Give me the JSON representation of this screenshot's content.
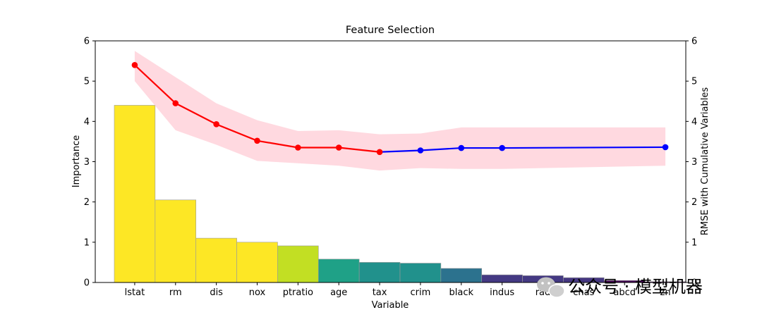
{
  "chart_data": {
    "type": "bar",
    "title": "Feature Selection",
    "xlabel": "Variable",
    "ylabel": "Importance",
    "y2label": "RMSE with Cumulative Variables",
    "ylim": [
      0,
      6
    ],
    "y2lim": [
      0,
      6
    ],
    "yticks": [
      0,
      1,
      2,
      3,
      4,
      5,
      6
    ],
    "grid": false,
    "categories": [
      "lstat",
      "rm",
      "dis",
      "nox",
      "ptratio",
      "age",
      "tax",
      "crim",
      "black",
      "indus",
      "rad",
      "chas",
      "abcd",
      "zn"
    ],
    "bars": {
      "name": "Importance",
      "values": [
        4.4,
        2.05,
        1.1,
        1.0,
        0.91,
        0.58,
        0.5,
        0.48,
        0.35,
        0.19,
        0.17,
        0.12,
        0.05,
        0.02
      ],
      "colors": [
        "#fde725",
        "#fde725",
        "#fde725",
        "#fde725",
        "#c2df23",
        "#1fa187",
        "#21918c",
        "#21918c",
        "#2c728e",
        "#443983",
        "#443983",
        "#453781",
        "#440154",
        "#440154"
      ]
    },
    "line": {
      "name": "RMSE with Cumulative Variables",
      "values": [
        5.4,
        4.45,
        3.93,
        3.52,
        3.35,
        3.35,
        3.24,
        3.28,
        3.34,
        3.34,
        null,
        null,
        null,
        3.36
      ],
      "band_upper": [
        5.75,
        5.1,
        4.45,
        4.03,
        3.76,
        3.78,
        3.68,
        3.7,
        3.85,
        3.85,
        null,
        null,
        null,
        3.85
      ],
      "band_lower": [
        5.0,
        3.78,
        3.42,
        3.02,
        2.96,
        2.9,
        2.78,
        2.84,
        2.82,
        2.82,
        null,
        null,
        null,
        2.9
      ],
      "selected_count": 7,
      "selected_color": "#ff0000",
      "unselected_color": "#0000ff",
      "band_color": "#ffc0cb"
    }
  },
  "watermark": {
    "text": "公众号 · 模型机器",
    "icon": "wechat-icon"
  }
}
